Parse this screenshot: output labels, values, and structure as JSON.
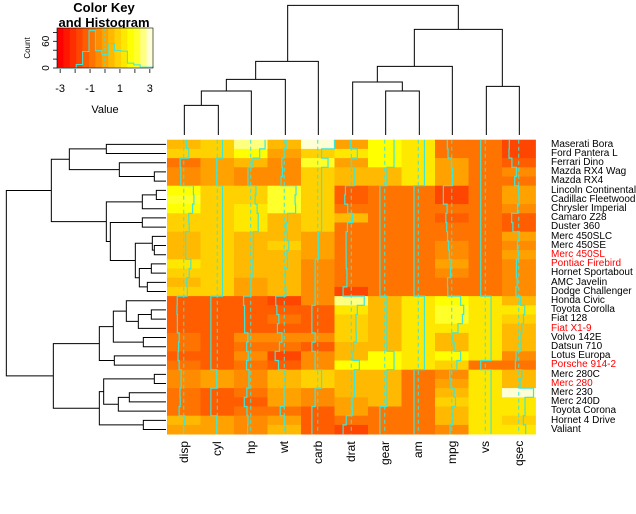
{
  "chart_data": {
    "type": "heatmap",
    "scale": "column",
    "columns": [
      "disp",
      "cyl",
      "hp",
      "wt",
      "carb",
      "drat",
      "gear",
      "am",
      "mpg",
      "vs",
      "qsec"
    ],
    "rows": [
      {
        "label": "Maserati Bora",
        "highlight": false,
        "values": [
          301,
          8,
          335,
          3.57,
          8,
          3.54,
          5,
          1,
          15.0,
          0,
          14.6
        ]
      },
      {
        "label": "Ford Pantera L",
        "highlight": false,
        "values": [
          351,
          8,
          264,
          3.17,
          4,
          4.22,
          5,
          1,
          15.8,
          0,
          14.5
        ]
      },
      {
        "label": "Ferrari Dino",
        "highlight": false,
        "values": [
          145,
          6,
          175,
          2.77,
          6,
          3.62,
          5,
          1,
          19.7,
          0,
          15.5
        ]
      },
      {
        "label": "Mazda RX4 Wag",
        "highlight": false,
        "values": [
          160,
          6,
          110,
          2.875,
          4,
          3.9,
          4,
          1,
          21.0,
          0,
          17.02
        ]
      },
      {
        "label": "Mazda RX4",
        "highlight": false,
        "values": [
          160,
          6,
          110,
          2.62,
          4,
          3.9,
          4,
          1,
          21.0,
          0,
          16.46
        ]
      },
      {
        "label": "Lincoln Continental",
        "highlight": false,
        "values": [
          460,
          8,
          215,
          5.424,
          4,
          3.0,
          3,
          0,
          10.4,
          0,
          17.82
        ]
      },
      {
        "label": "Cadillac Fleetwood",
        "highlight": false,
        "values": [
          472,
          8,
          205,
          5.25,
          4,
          2.93,
          3,
          0,
          10.4,
          0,
          17.98
        ]
      },
      {
        "label": "Chrysler Imperial",
        "highlight": false,
        "values": [
          440,
          8,
          230,
          5.345,
          4,
          3.23,
          3,
          0,
          14.7,
          0,
          17.42
        ]
      },
      {
        "label": "Camaro Z28",
        "highlight": false,
        "values": [
          350,
          8,
          245,
          3.84,
          4,
          3.73,
          3,
          0,
          13.3,
          0,
          15.41
        ]
      },
      {
        "label": "Duster 360",
        "highlight": false,
        "values": [
          360,
          8,
          245,
          3.57,
          4,
          3.21,
          3,
          0,
          14.3,
          0,
          15.84
        ]
      },
      {
        "label": "Merc 450SLC",
        "highlight": false,
        "values": [
          275.8,
          8,
          180,
          3.78,
          3,
          3.07,
          3,
          0,
          15.2,
          0,
          18.0
        ]
      },
      {
        "label": "Merc 450SE",
        "highlight": false,
        "values": [
          275.8,
          8,
          180,
          4.07,
          3,
          3.07,
          3,
          0,
          16.4,
          0,
          17.4
        ]
      },
      {
        "label": "Merc 450SL",
        "highlight": true,
        "values": [
          275.8,
          8,
          180,
          3.73,
          3,
          3.07,
          3,
          0,
          17.3,
          0,
          17.6
        ]
      },
      {
        "label": "Pontiac Firebird",
        "highlight": true,
        "values": [
          400,
          8,
          175,
          3.845,
          2,
          3.08,
          3,
          0,
          19.2,
          0,
          17.05
        ]
      },
      {
        "label": "Hornet Sportabout",
        "highlight": false,
        "values": [
          360,
          8,
          175,
          3.44,
          2,
          3.15,
          3,
          0,
          18.7,
          0,
          17.02
        ]
      },
      {
        "label": "AMC Javelin",
        "highlight": false,
        "values": [
          304,
          8,
          150,
          3.435,
          2,
          3.15,
          3,
          0,
          15.2,
          0,
          17.3
        ]
      },
      {
        "label": "Dodge Challenger",
        "highlight": false,
        "values": [
          318,
          8,
          150,
          3.52,
          2,
          2.76,
          3,
          0,
          15.5,
          0,
          16.87
        ]
      },
      {
        "label": "Honda Civic",
        "highlight": false,
        "values": [
          75.7,
          4,
          52,
          1.615,
          2,
          4.93,
          4,
          1,
          30.4,
          1,
          18.52
        ]
      },
      {
        "label": "Toyota Corolla",
        "highlight": false,
        "values": [
          71.1,
          4,
          65,
          1.835,
          1,
          4.22,
          4,
          1,
          33.9,
          1,
          19.9
        ]
      },
      {
        "label": "Fiat 128",
        "highlight": false,
        "values": [
          78.7,
          4,
          66,
          2.2,
          1,
          4.08,
          4,
          1,
          32.4,
          1,
          19.47
        ]
      },
      {
        "label": "Fiat X1-9",
        "highlight": true,
        "values": [
          79,
          4,
          66,
          1.935,
          1,
          4.08,
          4,
          1,
          27.3,
          1,
          18.9
        ]
      },
      {
        "label": "Volvo 142E",
        "highlight": false,
        "values": [
          121,
          4,
          109,
          2.78,
          2,
          4.11,
          4,
          1,
          21.4,
          1,
          18.6
        ]
      },
      {
        "label": "Datsun 710",
        "highlight": false,
        "values": [
          108,
          4,
          93,
          2.32,
          1,
          3.85,
          4,
          1,
          22.8,
          1,
          18.61
        ]
      },
      {
        "label": "Lotus Europa",
        "highlight": false,
        "values": [
          95.1,
          4,
          113,
          1.513,
          2,
          3.77,
          5,
          1,
          30.4,
          1,
          16.9
        ]
      },
      {
        "label": "Porsche 914-2",
        "highlight": true,
        "values": [
          120.3,
          4,
          91,
          2.14,
          2,
          4.43,
          5,
          1,
          26.0,
          0,
          16.7
        ]
      },
      {
        "label": "Merc 280C",
        "highlight": false,
        "values": [
          167.6,
          6,
          123,
          3.44,
          4,
          3.92,
          4,
          0,
          17.8,
          1,
          18.9
        ]
      },
      {
        "label": "Merc 280",
        "highlight": true,
        "values": [
          167.6,
          6,
          123,
          3.44,
          4,
          3.92,
          4,
          0,
          19.2,
          1,
          18.3
        ]
      },
      {
        "label": "Merc 230",
        "highlight": false,
        "values": [
          140.8,
          4,
          95,
          3.15,
          2,
          3.92,
          4,
          0,
          22.8,
          1,
          22.9
        ]
      },
      {
        "label": "Merc 240D",
        "highlight": false,
        "values": [
          146.7,
          4,
          62,
          3.19,
          2,
          3.69,
          4,
          0,
          24.4,
          1,
          20.0
        ]
      },
      {
        "label": "Toyota Corona",
        "highlight": false,
        "values": [
          120.1,
          4,
          97,
          2.465,
          1,
          3.7,
          3,
          0,
          21.5,
          1,
          20.01
        ]
      },
      {
        "label": "Hornet 4 Drive",
        "highlight": false,
        "values": [
          258,
          6,
          110,
          3.215,
          1,
          3.08,
          3,
          0,
          21.4,
          1,
          19.44
        ]
      },
      {
        "label": "Valiant",
        "highlight": false,
        "values": [
          225,
          6,
          105,
          3.46,
          1,
          2.76,
          3,
          0,
          18.1,
          1,
          20.22
        ]
      }
    ],
    "color_scale": "heat",
    "n_breaks": 16,
    "trace": "column",
    "colors": {
      "trace": "#3ee6d6",
      "label_highlight": "#ff0000",
      "label": "#000000"
    },
    "key": {
      "title_line1": "Color Key",
      "title_line2": "and Histogram",
      "xlabel": "Value",
      "ylabel": "Count",
      "x_ticks": [
        -3,
        -1,
        1,
        3
      ],
      "y_ticks": [
        0,
        60
      ]
    },
    "dendrogram": {
      "rows": true,
      "columns": true
    }
  }
}
